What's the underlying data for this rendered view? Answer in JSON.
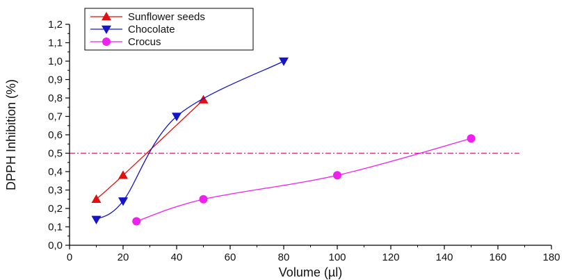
{
  "chart_data": {
    "type": "line",
    "title": "",
    "xlabel": "Volume (µl)",
    "ylabel": "DPPH Inhibition (%)",
    "xlim": [
      0,
      180
    ],
    "ylim": [
      0,
      1.2
    ],
    "x_ticks": [
      "0",
      "20",
      "40",
      "60",
      "80",
      "100",
      "120",
      "140",
      "160",
      "180"
    ],
    "y_ticks": [
      "0,0",
      "0,1",
      "0,2",
      "0,3",
      "0,4",
      "0,5",
      "0,6",
      "0,7",
      "0,8",
      "0,9",
      "1,0",
      "1,1",
      "1,2"
    ],
    "grid": false,
    "legend_position": "top-left",
    "reference_line": {
      "y": 0.5,
      "style": "dash-dot",
      "color": "#c0307a",
      "x_range": [
        0,
        168
      ]
    },
    "series": [
      {
        "name": "Sunflower seeds",
        "marker": "triangle-up",
        "color": "#e01010",
        "x": [
          10,
          20,
          50
        ],
        "y": [
          0.25,
          0.38,
          0.79
        ]
      },
      {
        "name": "Chocolate",
        "marker": "triangle-down",
        "color": "#1414c8",
        "x": [
          10,
          20,
          40,
          80
        ],
        "y": [
          0.14,
          0.24,
          0.7,
          1.0
        ]
      },
      {
        "name": "Crocus",
        "marker": "circle",
        "color": "#ee20ee",
        "x": [
          25,
          50,
          100,
          150
        ],
        "y": [
          0.13,
          0.25,
          0.38,
          0.58
        ]
      }
    ]
  }
}
